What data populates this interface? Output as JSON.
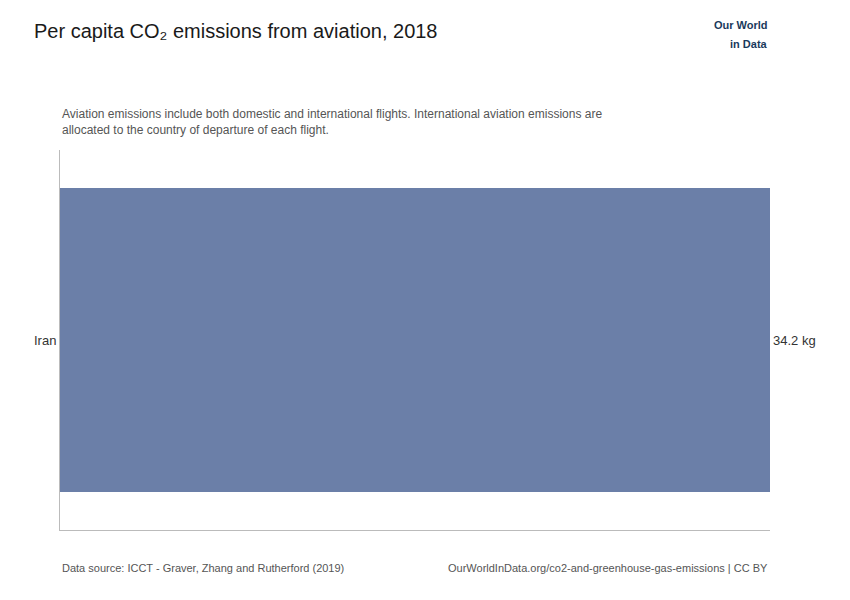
{
  "chart_data": {
    "type": "bar",
    "orientation": "horizontal",
    "title": "Per capita CO₂ emissions from aviation, 2018",
    "subtitle": [
      "Aviation emissions include both domestic and international flights. International aviation emissions are",
      "allocated to the country of departure of each flight."
    ],
    "categories": [
      "Iran"
    ],
    "values": [
      34.2
    ],
    "value_labels": [
      "34.2 kg"
    ],
    "data_labels": true,
    "color": "#6b7fa8",
    "xlim": [
      0,
      34.2
    ],
    "xticks": [],
    "tick_labels": "y",
    "grid": false,
    "annotations": [
      "Our World",
      "in Data",
      "Data source: ICCT - Graver, Zhang and Rutherford (2019)",
      "OurWorldInData.org/co2-and-greenhouse-gas-emissions | CC BY"
    ]
  }
}
